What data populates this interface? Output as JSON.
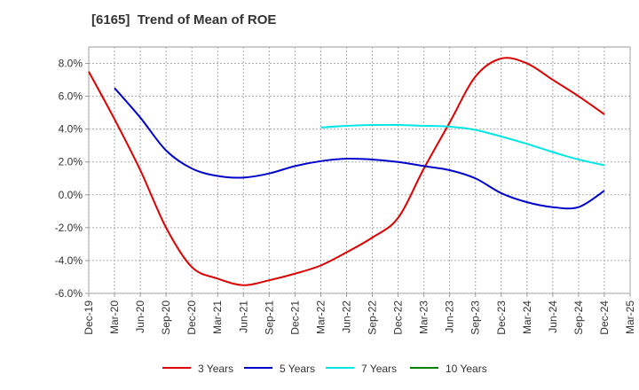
{
  "chart_data": {
    "type": "line",
    "title": "[6165]  Trend of Mean of ROE",
    "xlabel": "",
    "ylabel": "",
    "x_ticks": [
      "Dec-19",
      "Mar-20",
      "Jun-20",
      "Sep-20",
      "Dec-20",
      "Mar-21",
      "Jun-21",
      "Sep-21",
      "Dec-21",
      "Mar-22",
      "Jun-22",
      "Sep-22",
      "Dec-22",
      "Mar-23",
      "Jun-23",
      "Sep-23",
      "Dec-23",
      "Mar-24",
      "Jun-24",
      "Sep-24",
      "Dec-24",
      "Mar-25"
    ],
    "y_ticks": [
      "8.0%",
      "6.0%",
      "4.0%",
      "2.0%",
      "0.0%",
      "-2.0%",
      "-4.0%",
      "-6.0%"
    ],
    "ylim": [
      -6.0,
      9.0
    ],
    "grid": true,
    "legend_position": "bottom",
    "series": [
      {
        "name": "3 Years",
        "color": "#dd0000",
        "x": [
          "Dec-19",
          "Mar-20",
          "Jun-20",
          "Sep-20",
          "Dec-20",
          "Mar-21",
          "Jun-21",
          "Sep-21",
          "Dec-21",
          "Mar-22",
          "Jun-22",
          "Sep-22",
          "Dec-22",
          "Mar-23",
          "Jun-23",
          "Sep-23",
          "Dec-23",
          "Mar-24",
          "Jun-24",
          "Sep-24",
          "Dec-24"
        ],
        "values": [
          7.5,
          4.6,
          1.5,
          -2.0,
          -4.4,
          -5.1,
          -5.5,
          -5.2,
          -4.8,
          -4.3,
          -3.5,
          -2.6,
          -1.4,
          1.6,
          4.4,
          7.2,
          8.3,
          8.0,
          7.0,
          6.0,
          4.9
        ]
      },
      {
        "name": "5 Years",
        "color": "#0000cc",
        "x": [
          "Mar-20",
          "Jun-20",
          "Sep-20",
          "Dec-20",
          "Mar-21",
          "Jun-21",
          "Sep-21",
          "Dec-21",
          "Mar-22",
          "Jun-22",
          "Sep-22",
          "Dec-22",
          "Mar-23",
          "Jun-23",
          "Sep-23",
          "Dec-23",
          "Mar-24",
          "Jun-24",
          "Sep-24",
          "Dec-24"
        ],
        "values": [
          6.5,
          4.7,
          2.7,
          1.6,
          1.15,
          1.05,
          1.3,
          1.75,
          2.05,
          2.2,
          2.15,
          2.0,
          1.75,
          1.5,
          1.0,
          0.1,
          -0.45,
          -0.75,
          -0.75,
          0.25
        ]
      },
      {
        "name": "7 Years",
        "color": "#00e5e5",
        "x": [
          "Mar-22",
          "Jun-22",
          "Sep-22",
          "Dec-22",
          "Mar-23",
          "Jun-23",
          "Sep-23",
          "Dec-23",
          "Mar-24",
          "Jun-24",
          "Sep-24",
          "Dec-24"
        ],
        "values": [
          4.1,
          4.2,
          4.25,
          4.25,
          4.2,
          4.15,
          3.95,
          3.55,
          3.1,
          2.6,
          2.15,
          1.8
        ]
      },
      {
        "name": "10 Years",
        "color": "#008000",
        "x": [],
        "values": []
      }
    ]
  }
}
